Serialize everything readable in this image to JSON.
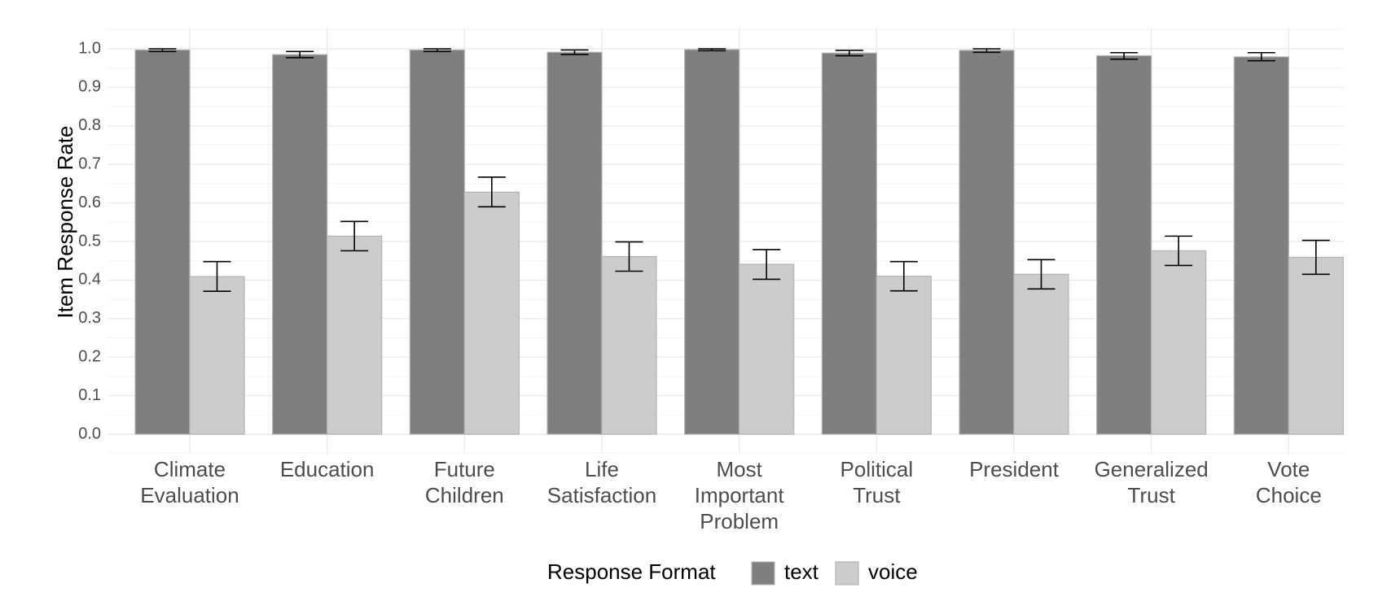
{
  "chart_data": {
    "type": "bar",
    "ylabel": "Item Response Rate",
    "xlabel": "",
    "ylim": [
      0,
      1.05
    ],
    "yticks": [
      "0.0",
      "0.1",
      "0.2",
      "0.3",
      "0.4",
      "0.5",
      "0.6",
      "0.7",
      "0.8",
      "0.9",
      "1.0"
    ],
    "categories": [
      [
        "Climate",
        "Evaluation"
      ],
      [
        "Education"
      ],
      [
        "Future",
        "Children"
      ],
      [
        "Life",
        "Satisfaction"
      ],
      [
        "Most",
        "Important",
        "Problem"
      ],
      [
        "Political",
        "Trust"
      ],
      [
        "President"
      ],
      [
        "Generalized",
        "Trust"
      ],
      [
        "Vote",
        "Choice"
      ]
    ],
    "series": [
      {
        "name": "text",
        "color": "#7f7f7f",
        "values": [
          0.997,
          0.985,
          0.997,
          0.991,
          0.998,
          0.989,
          0.996,
          0.982,
          0.979
        ],
        "error_low": [
          0.993,
          0.977,
          0.993,
          0.985,
          0.995,
          0.982,
          0.991,
          0.973,
          0.969
        ],
        "error_high": [
          1.0,
          0.993,
          1.0,
          0.997,
          1.0,
          0.996,
          1.0,
          0.99,
          0.99
        ]
      },
      {
        "name": "voice",
        "color": "#cccccc",
        "values": [
          0.409,
          0.514,
          0.628,
          0.461,
          0.441,
          0.41,
          0.415,
          0.476,
          0.459
        ],
        "error_low": [
          0.371,
          0.476,
          0.59,
          0.423,
          0.402,
          0.372,
          0.377,
          0.438,
          0.415
        ],
        "error_high": [
          0.448,
          0.552,
          0.667,
          0.499,
          0.479,
          0.448,
          0.453,
          0.514,
          0.503
        ]
      }
    ],
    "legend": {
      "title": "Response Format",
      "position": "bottom"
    },
    "grid": true
  }
}
